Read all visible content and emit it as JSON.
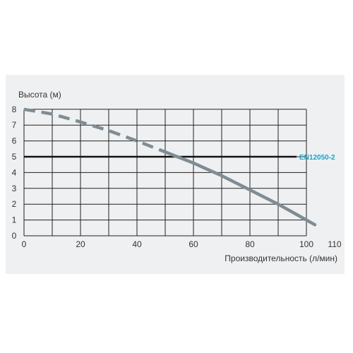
{
  "chart_data": {
    "type": "line",
    "title": "",
    "ylabel": "Высота (м)",
    "xlabel": "Производительность (л/мин)",
    "xlim": [
      0,
      100
    ],
    "ylim": [
      0,
      8
    ],
    "x_ticks": [
      0,
      20,
      40,
      60,
      80,
      100,
      110
    ],
    "y_ticks": [
      0,
      1,
      2,
      3,
      4,
      5,
      6,
      7,
      8
    ],
    "grid": true,
    "series": [
      {
        "name": "",
        "color": "#7f8c94",
        "style": "dashed",
        "x": [
          0,
          10,
          20,
          30,
          40,
          50
        ],
        "y": [
          8.0,
          7.7,
          7.2,
          6.65,
          6.0,
          5.3
        ]
      },
      {
        "name": "",
        "color": "#7f8c94",
        "style": "solid",
        "x": [
          50,
          55,
          60,
          65,
          70,
          75,
          80,
          85,
          90,
          95,
          100,
          103
        ],
        "y": [
          5.3,
          4.95,
          4.6,
          4.2,
          3.8,
          3.35,
          2.9,
          2.45,
          2.0,
          1.5,
          1.0,
          0.7
        ]
      }
    ],
    "reference_line": {
      "y": 5,
      "label": "EN12050-2",
      "line_color": "#111111",
      "label_color": "#1aa3c9"
    }
  }
}
